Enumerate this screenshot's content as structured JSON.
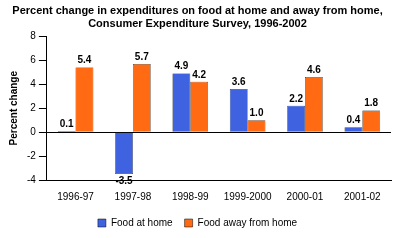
{
  "chart_data": {
    "type": "bar",
    "title": "Percent change in expenditures on food at home and away from home, Consumer Expenditure Survey, 1996-2002",
    "y_label": "Percent change",
    "categories": [
      "1996-97",
      "1997-98",
      "1998-99",
      "1999-2000",
      "2000-01",
      "2001-02"
    ],
    "series": [
      {
        "name": "Food at home",
        "color": "#3f63e0",
        "values": [
          0.1,
          -3.5,
          4.9,
          3.6,
          2.2,
          0.4
        ]
      },
      {
        "name": "Food away from home",
        "color": "#ff6a13",
        "values": [
          5.4,
          5.7,
          4.2,
          1.0,
          4.6,
          1.8
        ],
        "value_labels": [
          "5.4",
          "5.7",
          "4.2",
          "1.0",
          "4.6",
          "1.8"
        ]
      }
    ],
    "ylim": [
      -4,
      8
    ],
    "yticks": [
      -4,
      -2,
      0,
      2,
      4,
      6,
      8
    ],
    "grid": false,
    "legend": "bottom",
    "data_labels": true
  }
}
